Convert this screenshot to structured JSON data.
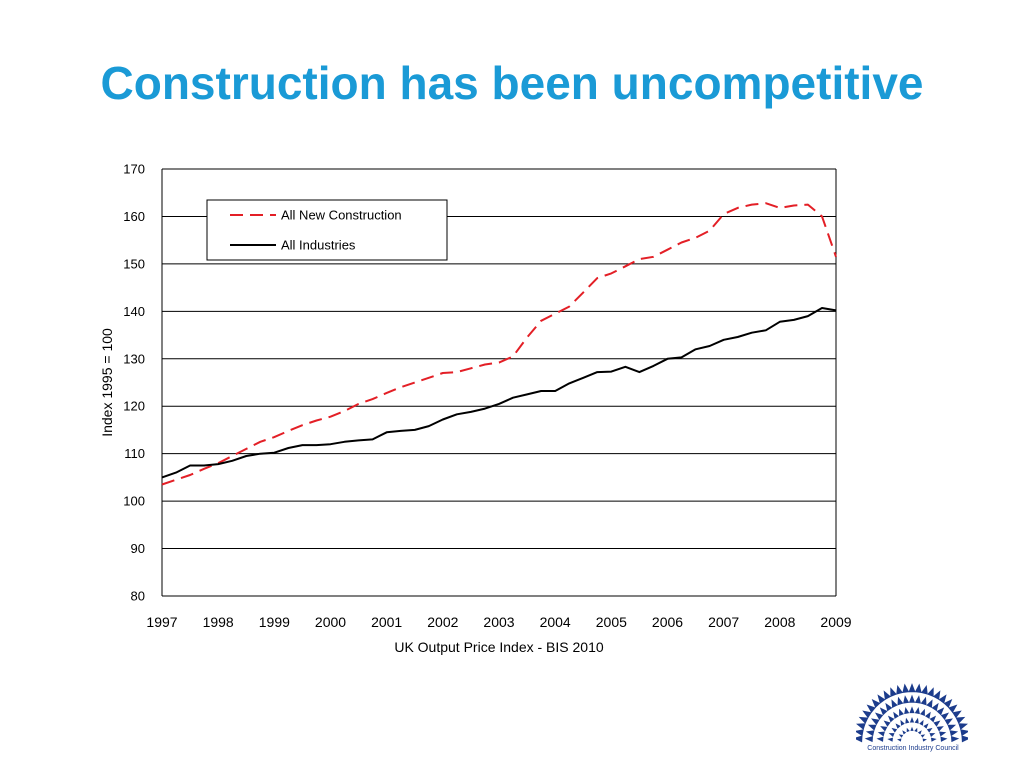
{
  "slide": {
    "title": "Construction has been uncompetitive"
  },
  "logo": {
    "caption": "Construction Industry Council"
  },
  "colors": {
    "title": "#1a9ad6",
    "construction_series": "#e31f26",
    "industries_series": "#000000",
    "logo": "#1c3c8c"
  },
  "chart_data": {
    "type": "line",
    "title": "",
    "xlabel": "UK Output Price Index - BIS 2010",
    "ylabel": "Index 1995 = 100",
    "xlim": [
      1997,
      2009
    ],
    "ylim": [
      80,
      170
    ],
    "x_ticks": [
      "1997",
      "1998",
      "1999",
      "2000",
      "2001",
      "2002",
      "2003",
      "2004",
      "2005",
      "2006",
      "2007",
      "2008",
      "2009"
    ],
    "y_ticks": [
      "80",
      "90",
      "100",
      "110",
      "120",
      "130",
      "140",
      "150",
      "160",
      "170"
    ],
    "grid": "horizontal",
    "legend_position": "top-left",
    "series": [
      {
        "name": "All New Construction",
        "style": "dashed",
        "color": "#e31f26",
        "x": [
          1997,
          1997.25,
          1997.5,
          1997.75,
          1998,
          1998.25,
          1998.5,
          1998.75,
          1999,
          1999.25,
          1999.5,
          1999.75,
          2000,
          2000.25,
          2000.5,
          2000.75,
          2001,
          2001.25,
          2001.5,
          2001.75,
          2002,
          2002.25,
          2002.5,
          2002.75,
          2003,
          2003.25,
          2003.5,
          2003.75,
          2004,
          2004.25,
          2004.5,
          2004.75,
          2005,
          2005.25,
          2005.5,
          2005.75,
          2006,
          2006.25,
          2006.5,
          2006.75,
          2007,
          2007.25,
          2007.5,
          2007.75,
          2008,
          2008.25,
          2008.5,
          2008.75,
          2009
        ],
        "values": [
          103.5,
          104.5,
          105.5,
          106.8,
          108,
          109.5,
          111,
          112.5,
          113.5,
          114.8,
          116,
          117,
          117.8,
          119,
          120.5,
          121.5,
          122.8,
          124,
          125,
          126,
          127,
          127.2,
          128,
          128.8,
          129.2,
          130.5,
          134.5,
          138,
          139.5,
          141,
          144,
          147,
          148,
          149.5,
          151,
          151.5,
          153,
          154.5,
          155.5,
          157,
          160.5,
          161.8,
          162.5,
          162.8,
          161.8,
          162.3,
          162.5,
          160,
          151.5
        ]
      },
      {
        "name": "All Industries",
        "style": "solid",
        "color": "#000000",
        "x": [
          1997,
          1997.25,
          1997.5,
          1997.75,
          1998,
          1998.25,
          1998.5,
          1998.75,
          1999,
          1999.25,
          1999.5,
          1999.75,
          2000,
          2000.25,
          2000.5,
          2000.75,
          2001,
          2001.25,
          2001.5,
          2001.75,
          2002,
          2002.25,
          2002.5,
          2002.75,
          2003,
          2003.25,
          2003.5,
          2003.75,
          2004,
          2004.25,
          2004.5,
          2004.75,
          2005,
          2005.25,
          2005.5,
          2005.75,
          2006,
          2006.25,
          2006.5,
          2006.75,
          2007,
          2007.25,
          2007.5,
          2007.75,
          2008,
          2008.25,
          2008.5,
          2008.75,
          2009
        ],
        "values": [
          105,
          106,
          107.5,
          107.5,
          107.8,
          108.5,
          109.5,
          110,
          110.2,
          111.2,
          111.8,
          111.8,
          112,
          112.5,
          112.8,
          113,
          114.5,
          114.8,
          115,
          115.8,
          117.2,
          118.3,
          118.8,
          119.5,
          120.5,
          121.8,
          122.5,
          123.2,
          123.2,
          124.8,
          126,
          127.2,
          127.3,
          128.3,
          127.2,
          128.5,
          130,
          130.3,
          132,
          132.7,
          134,
          134.6,
          135.5,
          136,
          137.8,
          138.2,
          139,
          140.7,
          140.2
        ]
      }
    ]
  }
}
